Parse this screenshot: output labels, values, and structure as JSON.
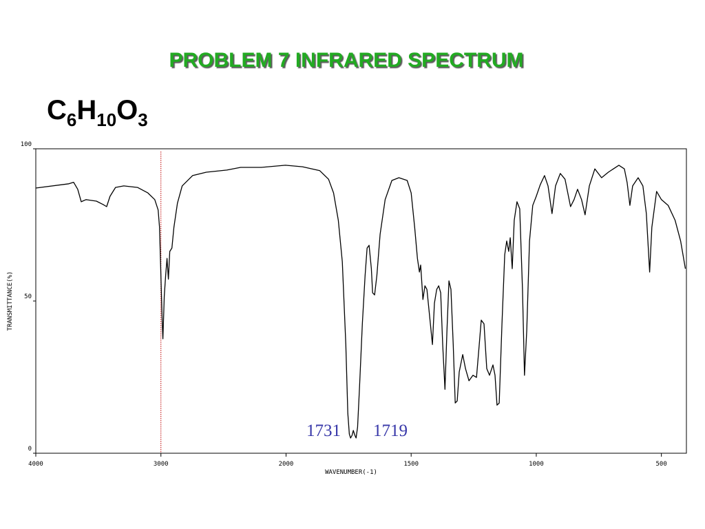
{
  "chart_data": {
    "type": "line",
    "title": "PROBLEM  7   INFRARED SPECTRUM",
    "formula": [
      "C",
      "6",
      "H",
      "10",
      "O",
      "3"
    ],
    "x_label": "WAVENUMBER(-1)",
    "y_label": "TRANSMITTANCE(%)",
    "annotations": [
      "1731",
      "1719"
    ],
    "xlim": [
      4000,
      400
    ],
    "ylim": [
      0,
      100
    ],
    "xticks": [
      4000,
      3000,
      2000,
      1500,
      1000,
      500
    ],
    "yticks": [
      0,
      50,
      100
    ],
    "reference_line": {
      "x": 3000,
      "color": "#c00000"
    },
    "color": "#000000",
    "x": [
      4000,
      3736,
      3698,
      3665,
      3637,
      3599,
      3516,
      3462,
      3434,
      3407,
      3363,
      3297,
      3187,
      3104,
      3049,
      3022,
      3011,
      3000,
      2989,
      2984,
      2973,
      2962,
      2951,
      2940,
      2929,
      2912,
      2896,
      2868,
      2830,
      2747,
      2637,
      2473,
      2363,
      2198,
      2005,
      1934,
      1865,
      1830,
      1810,
      1791,
      1775,
      1761,
      1753,
      1747,
      1742,
      1736,
      1731,
      1725,
      1720,
      1714,
      1706,
      1695,
      1684,
      1676,
      1668,
      1659,
      1654,
      1646,
      1637,
      1624,
      1604,
      1577,
      1549,
      1516,
      1500,
      1486,
      1475,
      1467,
      1462,
      1453,
      1445,
      1437,
      1426,
      1415,
      1407,
      1398,
      1390,
      1382,
      1374,
      1365,
      1357,
      1349,
      1341,
      1332,
      1324,
      1316,
      1308,
      1294,
      1283,
      1269,
      1253,
      1239,
      1228,
      1220,
      1209,
      1198,
      1187,
      1173,
      1165,
      1157,
      1148,
      1137,
      1126,
      1118,
      1110,
      1104,
      1096,
      1088,
      1077,
      1066,
      1055,
      1047,
      1038,
      1027,
      1014,
      1000,
      984,
      967,
      953,
      937,
      923,
      904,
      885,
      863,
      849,
      835,
      819,
      805,
      788,
      766,
      739,
      712,
      670,
      648,
      637,
      626,
      615,
      593,
      574,
      560,
      547,
      538,
      519,
      500,
      473,
      445,
      423,
      404
    ],
    "values": [
      87.1,
      88.5,
      89,
      86.7,
      82.6,
      83.3,
      82.8,
      81.7,
      81,
      84.4,
      87.3,
      87.8,
      87.3,
      85.5,
      83.3,
      79.9,
      74.2,
      58.4,
      42.5,
      37.6,
      51.6,
      58.4,
      64,
      57.2,
      66.3,
      67.4,
      74.2,
      82.1,
      87.8,
      91.2,
      92.3,
      93,
      93.9,
      93.9,
      94.6,
      94.1,
      92.8,
      90,
      85.5,
      76.5,
      62.9,
      35.7,
      13.1,
      6.3,
      5,
      5.9,
      7.5,
      5.9,
      5,
      8.6,
      22.2,
      42.5,
      58.4,
      67.4,
      68.3,
      60.6,
      52.7,
      52,
      58.4,
      71.9,
      83.3,
      89.6,
      90.5,
      89.6,
      85.5,
      74.2,
      64,
      59.5,
      61.8,
      50.5,
      55,
      53.8,
      44.8,
      35.7,
      49.3,
      53.8,
      55,
      52.7,
      35.7,
      21,
      40.3,
      56.6,
      53.8,
      35.7,
      16.5,
      17.2,
      26.7,
      32.4,
      27.8,
      23.8,
      25.6,
      24.9,
      35.7,
      43.7,
      42.5,
      27.8,
      25.6,
      29,
      25.6,
      15.8,
      16.5,
      42.5,
      65.2,
      69.7,
      66.3,
      70.8,
      60.6,
      76.5,
      82.6,
      80.3,
      53.8,
      25.6,
      40.3,
      69.7,
      81.4,
      84.4,
      88.2,
      91.2,
      87.8,
      78.7,
      87.8,
      91.9,
      90,
      81,
      83.3,
      86.7,
      83.3,
      78.3,
      87.8,
      93.4,
      90.5,
      92.3,
      94.6,
      93.4,
      88.9,
      81.4,
      87.8,
      90.5,
      87.8,
      78.7,
      59.5,
      74.2,
      86,
      83.3,
      81.4,
      76.5,
      69.7,
      60.6
    ]
  }
}
